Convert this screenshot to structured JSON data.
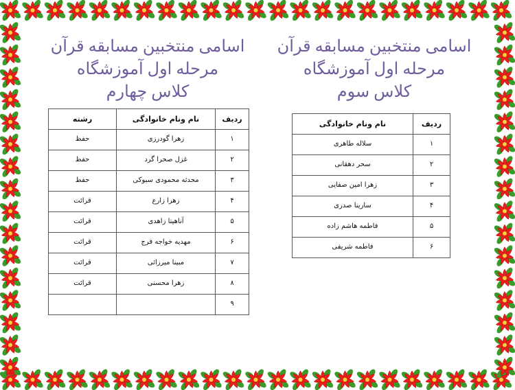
{
  "border": {
    "decoration": "poinsettia-flower-border",
    "colors": {
      "petal": "#e8201c",
      "leaf": "#3a9a2a",
      "center": "#f3d23a"
    }
  },
  "title_color": "#6e5c9c",
  "class3": {
    "title_lines": [
      "اسامی منتخبین مسابقه قرآن",
      "مرحله اول آموزشگاه",
      "کلاس سوم"
    ],
    "headers": {
      "row": "ردیف",
      "name": "نام ونام خانوادگی"
    },
    "rows": [
      {
        "n": "۱",
        "name": "سلاله طاهری"
      },
      {
        "n": "۲",
        "name": "سحر دهقانی"
      },
      {
        "n": "۳",
        "name": "زهرا امین صفایی"
      },
      {
        "n": "۴",
        "name": "سارینا صدری"
      },
      {
        "n": "۵",
        "name": "فاطمه هاشم زاده"
      },
      {
        "n": "۶",
        "name": "فاطمه شریفی"
      }
    ]
  },
  "class4": {
    "title_lines": [
      "اسامی منتخبین مسابقه قرآن",
      "مرحله اول آموزشگاه",
      "کلاس چهارم"
    ],
    "headers": {
      "row": "ردیف",
      "name": "نام ونام خانوادگی",
      "field": "رشته"
    },
    "rows": [
      {
        "n": "۱",
        "name": "زهرا گودرزی",
        "field": "حفظ"
      },
      {
        "n": "۲",
        "name": "غزل صحرا گرد",
        "field": "حفظ"
      },
      {
        "n": "۳",
        "name": "محدثه محمودی سبوکی",
        "field": "حفظ"
      },
      {
        "n": "۴",
        "name": "زهرا زارع",
        "field": "قرائت"
      },
      {
        "n": "۵",
        "name": "آناهیتا زاهدی",
        "field": "قرائت"
      },
      {
        "n": "۶",
        "name": "مهدیه خواجه فرج",
        "field": "قرائت"
      },
      {
        "n": "۷",
        "name": "مبینا میرزائی",
        "field": "قرائت"
      },
      {
        "n": "۸",
        "name": "زهرا محسنی",
        "field": "قرائت"
      },
      {
        "n": "۹",
        "name": "",
        "field": ""
      }
    ]
  }
}
